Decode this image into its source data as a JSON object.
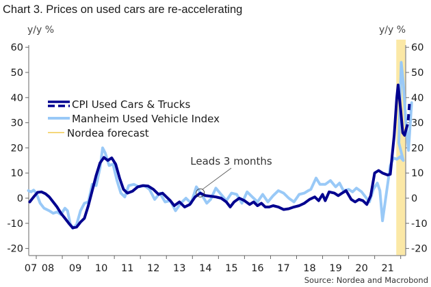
{
  "chart_data": {
    "type": "line",
    "title": "Chart 3. Prices on used cars are re-accelerating",
    "ylabel_left": "y/y %",
    "ylabel_right": "y/y %",
    "ylim": [
      -20,
      60
    ],
    "yticks": [
      -20,
      -10,
      0,
      10,
      20,
      30,
      40,
      50,
      60
    ],
    "xlim": [
      2007.0,
      2022.2
    ],
    "xtick_labels": [
      "07",
      "08",
      "09",
      "10",
      "11",
      "12",
      "13",
      "14",
      "15",
      "16",
      "17",
      "18",
      "19",
      "20",
      "21"
    ],
    "xtick_years": [
      2007,
      2008,
      2009,
      2010,
      2011,
      2012,
      2013,
      2014,
      2015,
      2016,
      2017,
      2018,
      2019,
      2020,
      2021
    ],
    "grid": false,
    "legend_position": "upper-left",
    "forecast_band": {
      "label": "Nordea forecast",
      "from": 2021.83,
      "to": 2022.2,
      "color": "#fbe8a6"
    },
    "annotation": {
      "text": "Leads 3 months",
      "x": 2014.3,
      "y": 1.0
    },
    "source": "Source: Nordea and Macrobond",
    "series": [
      {
        "name": "CPI Used Cars & Trucks",
        "color": "#00008f",
        "style": "solid",
        "points": [
          [
            2007.75,
            -1.5
          ],
          [
            2007.9,
            0.5
          ],
          [
            2008.05,
            2.3
          ],
          [
            2008.2,
            2.5
          ],
          [
            2008.35,
            1.8
          ],
          [
            2008.5,
            0.5
          ],
          [
            2008.65,
            -1.5
          ],
          [
            2008.8,
            -3.5
          ],
          [
            2008.95,
            -6.0
          ],
          [
            2009.1,
            -8.0
          ],
          [
            2009.25,
            -10.0
          ],
          [
            2009.4,
            -11.8
          ],
          [
            2009.55,
            -11.5
          ],
          [
            2009.7,
            -9.5
          ],
          [
            2009.85,
            -8.0
          ],
          [
            2010.0,
            -3.0
          ],
          [
            2010.15,
            3.0
          ],
          [
            2010.3,
            9.0
          ],
          [
            2010.45,
            14.0
          ],
          [
            2010.6,
            16.2
          ],
          [
            2010.75,
            15.0
          ],
          [
            2010.9,
            16.0
          ],
          [
            2011.05,
            13.5
          ],
          [
            2011.2,
            8.0
          ],
          [
            2011.35,
            3.5
          ],
          [
            2011.5,
            2.0
          ],
          [
            2011.7,
            2.8
          ],
          [
            2011.9,
            4.5
          ],
          [
            2012.1,
            5.0
          ],
          [
            2012.3,
            4.8
          ],
          [
            2012.5,
            3.5
          ],
          [
            2012.7,
            1.5
          ],
          [
            2012.85,
            2.0
          ],
          [
            2013.0,
            0.5
          ],
          [
            2013.15,
            -1.0
          ],
          [
            2013.3,
            -3.0
          ],
          [
            2013.5,
            -1.5
          ],
          [
            2013.7,
            -3.5
          ],
          [
            2013.9,
            -2.5
          ],
          [
            2014.1,
            0.5
          ],
          [
            2014.3,
            2.0
          ],
          [
            2014.5,
            1.0
          ],
          [
            2014.7,
            0.8
          ],
          [
            2014.9,
            0.5
          ],
          [
            2015.1,
            0.0
          ],
          [
            2015.3,
            -1.5
          ],
          [
            2015.45,
            -3.5
          ],
          [
            2015.6,
            -1.5
          ],
          [
            2015.8,
            0.0
          ],
          [
            2016.0,
            -1.0
          ],
          [
            2016.2,
            -2.5
          ],
          [
            2016.35,
            -1.5
          ],
          [
            2016.5,
            -3.0
          ],
          [
            2016.65,
            -2.0
          ],
          [
            2016.8,
            -3.5
          ],
          [
            2016.95,
            -3.5
          ],
          [
            2017.1,
            -3.0
          ],
          [
            2017.3,
            -3.5
          ],
          [
            2017.5,
            -4.5
          ],
          [
            2017.7,
            -4.2
          ],
          [
            2017.9,
            -3.5
          ],
          [
            2018.1,
            -3.0
          ],
          [
            2018.3,
            -2.0
          ],
          [
            2018.5,
            -0.5
          ],
          [
            2018.7,
            0.5
          ],
          [
            2018.85,
            -1.0
          ],
          [
            2019.0,
            1.5
          ],
          [
            2019.1,
            -1.0
          ],
          [
            2019.25,
            2.5
          ],
          [
            2019.45,
            2.0
          ],
          [
            2019.6,
            1.0
          ],
          [
            2019.75,
            2.0
          ],
          [
            2019.9,
            3.0
          ],
          [
            2020.1,
            -0.5
          ],
          [
            2020.25,
            -1.5
          ],
          [
            2020.4,
            -0.5
          ],
          [
            2020.55,
            -1.0
          ],
          [
            2020.7,
            -2.5
          ],
          [
            2020.85,
            1.0
          ],
          [
            2021.0,
            10.0
          ],
          [
            2021.15,
            11.0
          ],
          [
            2021.3,
            10.0
          ],
          [
            2021.5,
            9.2
          ],
          [
            2021.6,
            9.5
          ],
          [
            2021.75,
            25.0
          ],
          [
            2021.85,
            40.0
          ],
          [
            2021.9,
            45.0
          ],
          [
            2022.0,
            35.0
          ],
          [
            2022.08,
            26.0
          ],
          [
            2022.15,
            25.0
          ],
          [
            2022.2,
            27.0
          ]
        ],
        "forecast_points": [
          [
            2022.28,
            30.0
          ],
          [
            2022.34,
            38.0
          ]
        ]
      },
      {
        "name": "Manheim Used Vehicle Index",
        "color": "#99c9f7",
        "style": "solid",
        "points": [
          [
            2007.7,
            3.0
          ],
          [
            2007.8,
            2.5
          ],
          [
            2007.9,
            3.2
          ],
          [
            2008.0,
            2.0
          ],
          [
            2008.15,
            -2.0
          ],
          [
            2008.3,
            -4.0
          ],
          [
            2008.5,
            -5.0
          ],
          [
            2008.65,
            -6.0
          ],
          [
            2008.8,
            -5.5
          ],
          [
            2008.95,
            -6.5
          ],
          [
            2009.1,
            -4.0
          ],
          [
            2009.2,
            -5.0
          ],
          [
            2009.3,
            -10.0
          ],
          [
            2009.4,
            -12.0
          ],
          [
            2009.55,
            -10.5
          ],
          [
            2009.7,
            -5.0
          ],
          [
            2009.85,
            -2.0
          ],
          [
            2010.0,
            -1.5
          ],
          [
            2010.15,
            5.5
          ],
          [
            2010.3,
            5.0
          ],
          [
            2010.45,
            12.0
          ],
          [
            2010.55,
            20.0
          ],
          [
            2010.65,
            18.0
          ],
          [
            2010.8,
            13.0
          ],
          [
            2010.95,
            13.5
          ],
          [
            2011.1,
            7.0
          ],
          [
            2011.25,
            2.0
          ],
          [
            2011.4,
            0.5
          ],
          [
            2011.55,
            5.0
          ],
          [
            2011.75,
            5.5
          ],
          [
            2011.95,
            4.5
          ],
          [
            2012.15,
            5.0
          ],
          [
            2012.35,
            3.5
          ],
          [
            2012.55,
            -0.5
          ],
          [
            2012.75,
            2.0
          ],
          [
            2012.95,
            -1.5
          ],
          [
            2013.15,
            -1.0
          ],
          [
            2013.35,
            -5.0
          ],
          [
            2013.55,
            -2.0
          ],
          [
            2013.75,
            0.0
          ],
          [
            2013.95,
            -2.0
          ],
          [
            2014.15,
            4.5
          ],
          [
            2014.35,
            1.5
          ],
          [
            2014.55,
            -2.0
          ],
          [
            2014.7,
            -0.5
          ],
          [
            2014.9,
            4.0
          ],
          [
            2015.1,
            1.5
          ],
          [
            2015.3,
            -1.0
          ],
          [
            2015.5,
            2.0
          ],
          [
            2015.7,
            1.5
          ],
          [
            2015.9,
            -2.0
          ],
          [
            2016.1,
            2.5
          ],
          [
            2016.3,
            0.5
          ],
          [
            2016.5,
            -1.5
          ],
          [
            2016.7,
            1.5
          ],
          [
            2016.9,
            -1.5
          ],
          [
            2017.1,
            1.0
          ],
          [
            2017.3,
            3.0
          ],
          [
            2017.5,
            2.0
          ],
          [
            2017.7,
            0.0
          ],
          [
            2017.9,
            -1.5
          ],
          [
            2018.1,
            1.5
          ],
          [
            2018.3,
            2.0
          ],
          [
            2018.45,
            3.0
          ],
          [
            2018.55,
            3.5
          ],
          [
            2018.75,
            8.0
          ],
          [
            2018.9,
            5.5
          ],
          [
            2019.1,
            5.5
          ],
          [
            2019.3,
            7.0
          ],
          [
            2019.5,
            4.5
          ],
          [
            2019.65,
            6.0
          ],
          [
            2019.8,
            3.0
          ],
          [
            2020.0,
            3.5
          ],
          [
            2020.15,
            2.5
          ],
          [
            2020.3,
            4.0
          ],
          [
            2020.5,
            2.5
          ],
          [
            2020.65,
            0.5
          ],
          [
            2020.8,
            -1.5
          ],
          [
            2020.95,
            3.5
          ],
          [
            2021.1,
            6.0
          ],
          [
            2021.2,
            3.0
          ],
          [
            2021.3,
            -9.0
          ],
          [
            2021.45,
            2.0
          ],
          [
            2021.6,
            13.0
          ],
          [
            2021.72,
            16.0
          ],
          [
            2021.85,
            15.5
          ],
          [
            2021.98,
            16.5
          ],
          [
            2022.1,
            15.0
          ],
          [
            2021.95,
            16.0
          ]
        ]
      }
    ],
    "legend": [
      {
        "label": "CPI Used Cars & Trucks",
        "style": "solid+dashed",
        "color": "#00008f"
      },
      {
        "label": "Manheim Used Vehicle Index",
        "style": "solid",
        "color": "#99c9f7"
      },
      {
        "label": "Nordea forecast",
        "style": "band",
        "color": "#f5d77a"
      }
    ]
  }
}
